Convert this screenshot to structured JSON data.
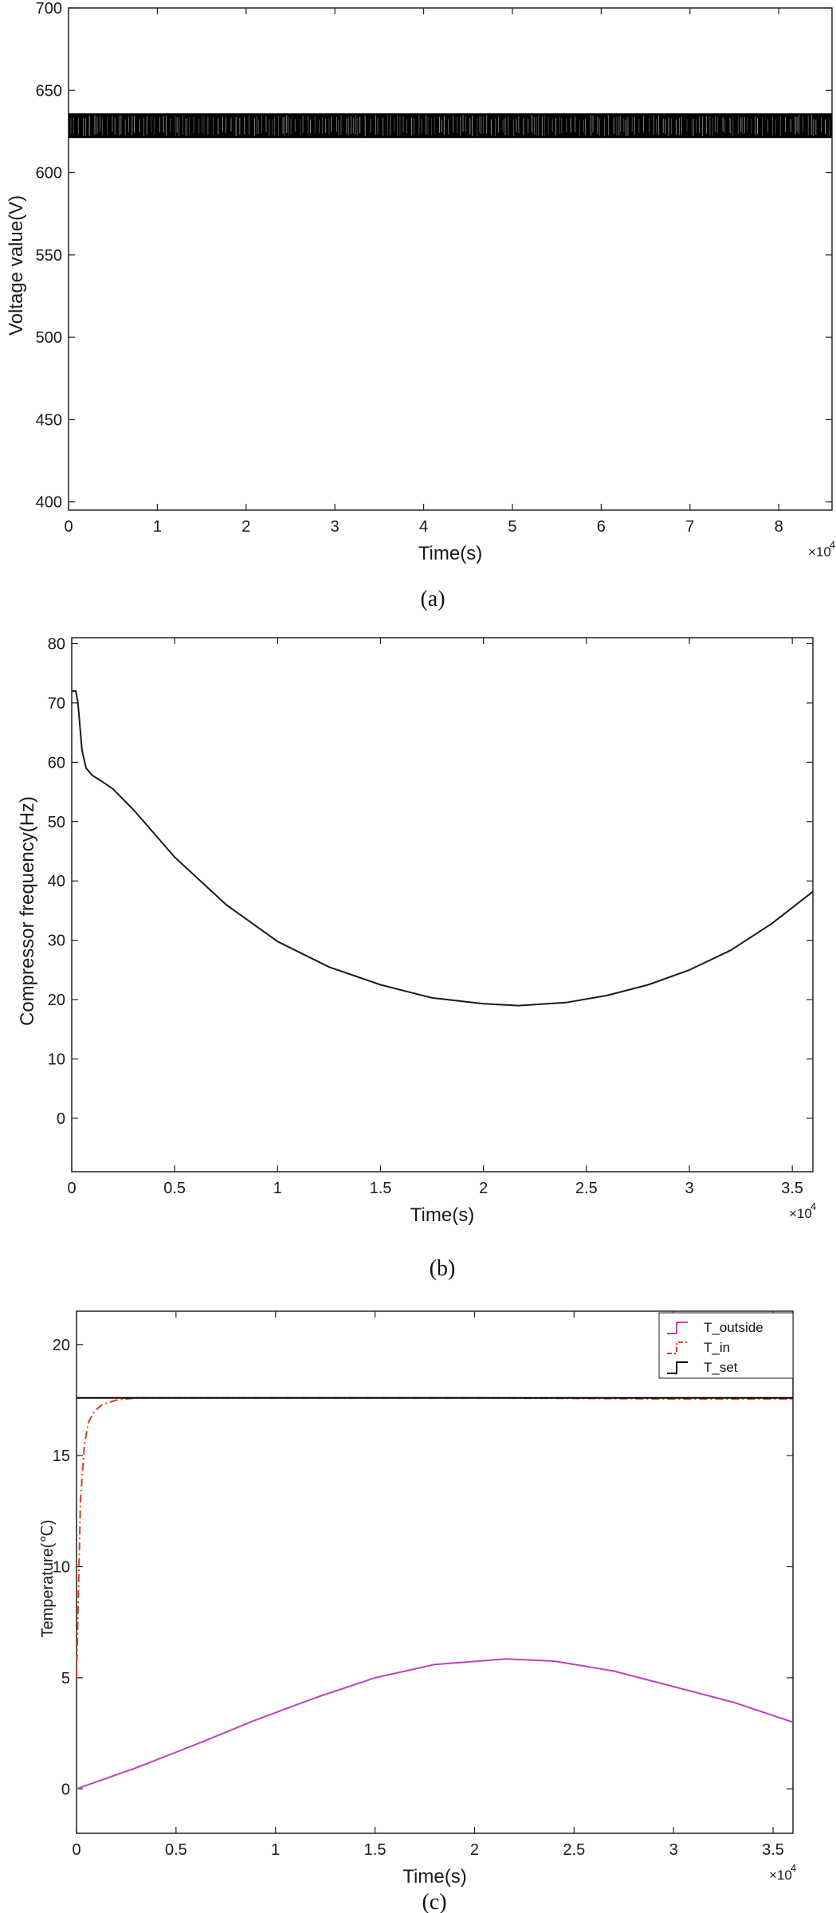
{
  "chart_data": [
    {
      "type": "line",
      "caption": "(a)",
      "xlabel": "Time(s)",
      "ylabel": "Voltage value(V)",
      "x_multiplier": "×10",
      "x_multiplier_exp": "4",
      "xlim": [
        0,
        8.6
      ],
      "ylim": [
        395,
        700
      ],
      "xticks": [
        0,
        1,
        2,
        3,
        4,
        5,
        6,
        7,
        8
      ],
      "yticks": [
        400,
        450,
        500,
        550,
        600,
        650,
        700
      ],
      "colors": {
        "line": "#000000"
      },
      "series": [
        {
          "name": "",
          "band": [
            621,
            636
          ],
          "x_range": [
            0,
            8.6
          ]
        }
      ]
    },
    {
      "type": "line",
      "caption": "(b)",
      "xlabel": "Time(s)",
      "ylabel": "Compressor frequency(Hz)",
      "x_multiplier": "×10",
      "x_multiplier_exp": "4",
      "xlim": [
        0,
        3.6
      ],
      "ylim": [
        -9,
        81
      ],
      "xticks": [
        0,
        0.5,
        1,
        1.5,
        2,
        2.5,
        3,
        3.5
      ],
      "yticks": [
        0,
        10,
        20,
        30,
        40,
        50,
        60,
        70,
        80
      ],
      "colors": {
        "line": "#1a1a1a"
      },
      "series": [
        {
          "name": "",
          "x": [
            0,
            0.02,
            0.03,
            0.05,
            0.07,
            0.1,
            0.15,
            0.2,
            0.3,
            0.5,
            0.75,
            1.0,
            1.25,
            1.5,
            1.75,
            2.0,
            2.17,
            2.4,
            2.6,
            2.8,
            3.0,
            3.2,
            3.4,
            3.6
          ],
          "y": [
            72,
            72,
            70,
            62,
            59,
            57.8,
            56.7,
            55.5,
            52,
            44,
            36,
            29.8,
            25.5,
            22.5,
            20.3,
            19.3,
            19,
            19.5,
            20.7,
            22.5,
            25,
            28.3,
            32.8,
            38.2
          ]
        }
      ]
    },
    {
      "type": "line",
      "caption": "(c)",
      "xlabel": "Time(s)",
      "ylabel": "Temperature(℃)",
      "x_multiplier": "×10",
      "x_multiplier_exp": "4",
      "xlim": [
        0,
        3.6
      ],
      "ylim": [
        -2,
        21.5
      ],
      "xticks": [
        0,
        0.5,
        1,
        1.5,
        2,
        2.5,
        3,
        3.5
      ],
      "yticks": [
        0,
        5,
        10,
        15,
        20
      ],
      "legend_position": "top-right",
      "colors": {
        "T_outside": "#c040c0",
        "T_in": "#e03b1f",
        "T_set": "#000000"
      },
      "series": [
        {
          "name": "T_outside",
          "x": [
            0,
            0.3,
            0.6,
            0.9,
            1.2,
            1.5,
            1.8,
            2.16,
            2.4,
            2.7,
            3.0,
            3.3,
            3.6
          ],
          "y": [
            0,
            0.95,
            2.0,
            3.1,
            4.1,
            5.0,
            5.6,
            5.85,
            5.75,
            5.3,
            4.6,
            3.9,
            3.0
          ]
        },
        {
          "name": "T_in",
          "x": [
            0,
            0.01,
            0.02,
            0.04,
            0.06,
            0.09,
            0.13,
            0.2,
            0.3,
            0.5,
            1.0,
            2.0,
            3.0,
            3.6
          ],
          "y": [
            5,
            9,
            13,
            15.5,
            16.5,
            17.0,
            17.3,
            17.5,
            17.6,
            17.6,
            17.6,
            17.6,
            17.55,
            17.55
          ]
        },
        {
          "name": "T_set",
          "x": [
            0,
            3.6
          ],
          "y": [
            17.6,
            17.6
          ]
        }
      ]
    }
  ]
}
